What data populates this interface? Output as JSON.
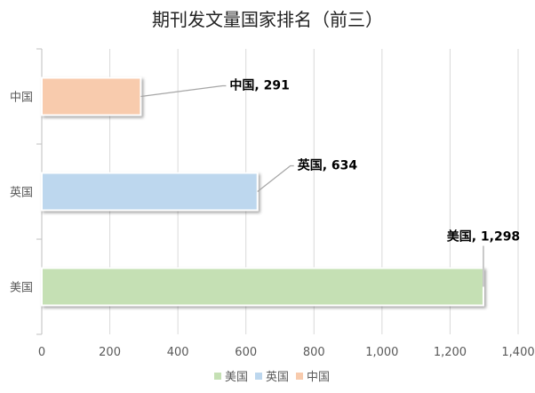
{
  "chart_data": {
    "type": "bar",
    "orientation": "horizontal",
    "title": "期刊发文量国家排名（前三）",
    "categories": [
      "中国",
      "英国",
      "美国"
    ],
    "values": [
      291,
      634,
      1298
    ],
    "value_labels": [
      "中国, 291",
      "英国, 634",
      "美国, 1,298"
    ],
    "xlim": [
      0,
      1400
    ],
    "x_ticks": [
      "0",
      "200",
      "400",
      "600",
      "800",
      "1,000",
      "1,200",
      "1,400"
    ],
    "grid": "vertical",
    "legend": {
      "position": "bottom",
      "entries": [
        {
          "name": "美国",
          "color": "#c5e0b4"
        },
        {
          "name": "英国",
          "color": "#bdd7ee"
        },
        {
          "name": "中国",
          "color": "#f8cbad"
        }
      ]
    },
    "colors": [
      "#f8cbad",
      "#bdd7ee",
      "#c5e0b4"
    ]
  }
}
